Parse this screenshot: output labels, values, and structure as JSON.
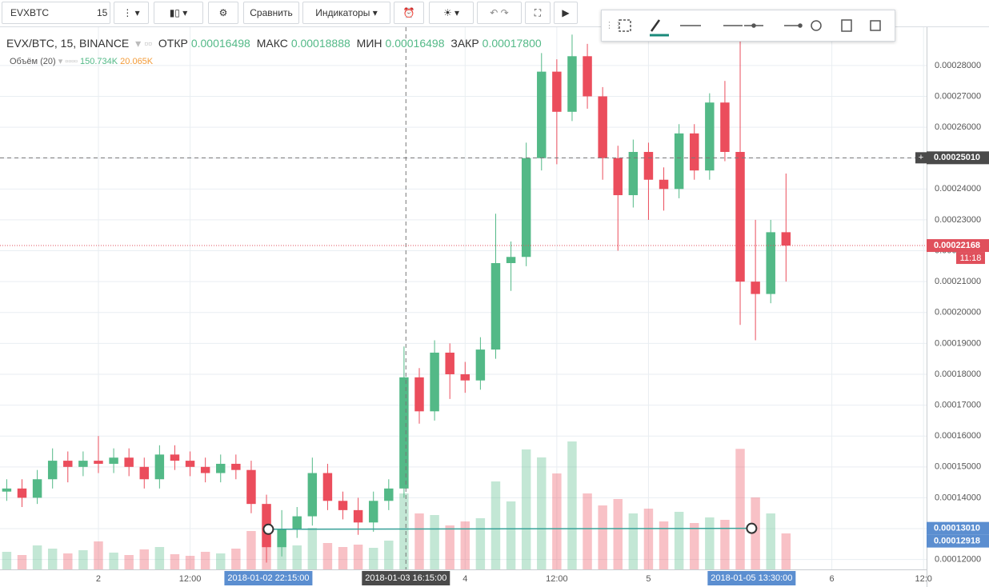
{
  "toolbar": {
    "symbol": "EVXBTC",
    "interval": "15",
    "compare": "Сравнить",
    "indicators": "Индикаторы"
  },
  "legend": {
    "title": "EVX/BTC, 15, BINANCE",
    "open_label": "ОТКР",
    "open": "0.00016498",
    "high_label": "МАКС",
    "high": "0.00018888",
    "low_label": "МИН",
    "low": "0.00016498",
    "close_label": "ЗАКР",
    "close": "0.00017800",
    "volume_title": "Объём (20)",
    "volume": "150.734K",
    "volume_ma": "20.065K"
  },
  "chart_data": {
    "type": "candlestick",
    "x": [
      12,
      14,
      16,
      18,
      20,
      22,
      24,
      26,
      28,
      30,
      32,
      34,
      36,
      38,
      40,
      42,
      44,
      46,
      48,
      50,
      52,
      54,
      56,
      58,
      60,
      62,
      64,
      66,
      68,
      70,
      72,
      74,
      76,
      78,
      80,
      82,
      84,
      86,
      88,
      90,
      92,
      94,
      96,
      98,
      100,
      102,
      104,
      106,
      108,
      110,
      112,
      114
    ],
    "open": [
      0.000142,
      0.000143,
      0.00014,
      0.000146,
      0.000152,
      0.00015,
      0.000152,
      0.000151,
      0.000153,
      0.00015,
      0.000146,
      0.000154,
      0.000152,
      0.00015,
      0.000148,
      0.000151,
      0.000149,
      0.000138,
      0.000124,
      0.00013,
      0.000134,
      0.000148,
      0.000139,
      0.000136,
      0.000132,
      0.000139,
      0.000143,
      0.000179,
      0.000168,
      0.000187,
      0.00018,
      0.000178,
      0.000188,
      0.000216,
      0.000218,
      0.00025,
      0.000278,
      0.000265,
      0.000283,
      0.00027,
      0.00025,
      0.000238,
      0.000252,
      0.000243,
      0.00024,
      0.000258,
      0.000246,
      0.000268,
      0.000252,
      0.00021,
      0.000206,
      0.000226
    ],
    "high": [
      0.000146,
      0.000146,
      0.000149,
      0.000156,
      0.000155,
      0.000155,
      0.00016,
      0.000156,
      0.000156,
      0.000153,
      0.000157,
      0.000157,
      0.000155,
      0.000153,
      0.000154,
      0.000154,
      0.000152,
      0.000141,
      0.000136,
      0.000137,
      0.000153,
      0.000151,
      0.000142,
      0.00014,
      0.000142,
      0.000146,
      0.000189,
      0.000182,
      0.000191,
      0.00019,
      0.000184,
      0.000192,
      0.000232,
      0.000223,
      0.000255,
      0.000284,
      0.000282,
      0.00029,
      0.000287,
      0.000273,
      0.000254,
      0.000256,
      0.000255,
      0.000247,
      0.000261,
      0.000261,
      0.000271,
      0.000275,
      0.000289,
      0.00023,
      0.00023,
      0.000245
    ],
    "low": [
      0.000139,
      0.000137,
      0.000138,
      0.000143,
      0.000145,
      0.000147,
      0.000148,
      0.000148,
      0.000147,
      0.000143,
      0.000143,
      0.000149,
      0.000147,
      0.000145,
      0.000145,
      0.000146,
      0.000135,
      0.000119,
      0.000121,
      0.000127,
      0.000131,
      0.000136,
      0.000133,
      0.000128,
      0.000129,
      0.000136,
      0.00014,
      0.000164,
      0.000165,
      0.000172,
      0.000174,
      0.000175,
      0.000185,
      0.000207,
      0.000215,
      0.000246,
      0.000248,
      0.000262,
      0.000266,
      0.000243,
      0.00022,
      0.000234,
      0.00023,
      0.000233,
      0.000237,
      0.000243,
      0.000243,
      0.000249,
      0.000196,
      0.000191,
      0.000203,
      0.00021
    ],
    "close": [
      0.000143,
      0.00014,
      0.000146,
      0.000152,
      0.00015,
      0.000152,
      0.000151,
      0.000153,
      0.00015,
      0.000146,
      0.000154,
      0.000152,
      0.00015,
      0.000148,
      0.000151,
      0.000149,
      0.000138,
      0.000124,
      0.00013,
      0.000134,
      0.000148,
      0.000139,
      0.000136,
      0.000132,
      0.000139,
      0.000143,
      0.000179,
      0.000168,
      0.000187,
      0.00018,
      0.000178,
      0.000188,
      0.000216,
      0.000218,
      0.00025,
      0.000278,
      0.000265,
      0.000283,
      0.00027,
      0.00025,
      0.000238,
      0.000252,
      0.000243,
      0.00024,
      0.000258,
      0.000246,
      0.000268,
      0.000252,
      0.00021,
      0.000206,
      0.000226,
      0.00022168
    ],
    "volume": [
      22000,
      18000,
      30000,
      26000,
      20000,
      24000,
      35000,
      21000,
      18000,
      25000,
      28000,
      19000,
      17000,
      22000,
      20000,
      26000,
      48000,
      62000,
      40000,
      30000,
      52000,
      33000,
      28000,
      31000,
      27000,
      36000,
      95000,
      70000,
      68000,
      55000,
      60000,
      64000,
      110000,
      85000,
      150000,
      140000,
      120000,
      160000,
      95000,
      80000,
      88000,
      70000,
      76000,
      60000,
      72000,
      58000,
      65000,
      62000,
      150734,
      90000,
      70000,
      45000
    ],
    "up_color": "#53b987",
    "down_color": "#eb4d5c",
    "xlim": [
      11.12,
      132.4
    ],
    "ylim": [
      0.0001168,
      0.0002924
    ],
    "xticks": [
      {
        "value": 24,
        "label": "2"
      },
      {
        "value": 36,
        "label": "12:00"
      },
      {
        "value": 72,
        "label": "4"
      },
      {
        "value": 84,
        "label": "12:00"
      },
      {
        "value": 96,
        "label": "5"
      },
      {
        "value": 120,
        "label": "6"
      },
      {
        "value": 132,
        "label": "12:0"
      }
    ],
    "yticks": [
      {
        "value": 0.00012,
        "label": "0.00012000"
      },
      {
        "value": 0.00013,
        "label": "0.00013000"
      },
      {
        "value": 0.00014,
        "label": "0.00014000"
      },
      {
        "value": 0.00015,
        "label": "0.00015000"
      },
      {
        "value": 0.00016,
        "label": "0.00016000"
      },
      {
        "value": 0.00017,
        "label": "0.00017000"
      },
      {
        "value": 0.00018,
        "label": "0.00018000"
      },
      {
        "value": 0.00019,
        "label": "0.00019000"
      },
      {
        "value": 0.0002,
        "label": "0.00020000"
      },
      {
        "value": 0.00021,
        "label": "0.00021000"
      },
      {
        "value": 0.00022,
        "label": "0.00022000"
      },
      {
        "value": 0.00023,
        "label": "0.00023000"
      },
      {
        "value": 0.00024,
        "label": "0.00024000"
      },
      {
        "value": 0.00025,
        "label": "0.00025000"
      },
      {
        "value": 0.00026,
        "label": "0.00026000"
      },
      {
        "value": 0.00027,
        "label": "0.00027000"
      },
      {
        "value": 0.00028,
        "label": "0.00028000"
      }
    ],
    "grid": true,
    "price_labels": [
      {
        "value": 0.0002501,
        "label": "0.00025010",
        "color": "#4a4a4a"
      },
      {
        "value": 0.00022168,
        "label": "0.00022168",
        "color": "#e0505c"
      },
      {
        "value": 0.0001301,
        "label": "0.00013010",
        "color": "#5b8ed0"
      },
      {
        "value": 0.00012918,
        "label": "0.00012918",
        "color": "#5b8ed0"
      }
    ],
    "countdown": "11:18",
    "x_markers": [
      {
        "value": 46.25,
        "label": "2018-01-02 22:15:00"
      },
      {
        "value": 64.25,
        "label": "2018-01-03 16:15:00"
      },
      {
        "value": 109.5,
        "label": "2018-01-05 13:30:00"
      }
    ],
    "trendline": {
      "x": [
        46.25,
        109.5
      ],
      "y": [
        0.0001298,
        0.0001301
      ],
      "color": "#3aa39a"
    }
  }
}
